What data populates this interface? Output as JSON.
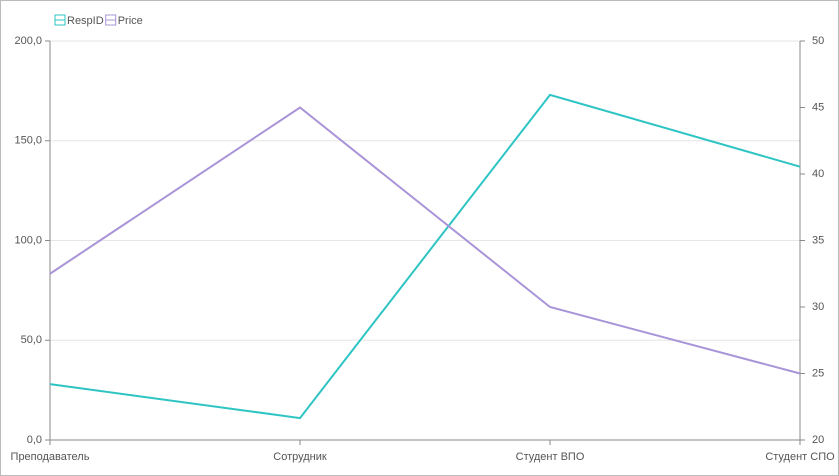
{
  "chart_data": {
    "type": "line",
    "categories": [
      "Преподаватель",
      "Сотрудник",
      "Студент ВПО",
      "Студент СПО"
    ],
    "series": [
      {
        "name": "RespID",
        "color": "#2ec4c4",
        "values": [
          28,
          11,
          173,
          137
        ]
      },
      {
        "name": "Price",
        "color": "#a994d8",
        "values": [
          32.5,
          45,
          30,
          25
        ],
        "axis": "y2"
      }
    ],
    "ylim": [
      0,
      200
    ],
    "yticks": [
      {
        "value": 0,
        "label": "0,0"
      },
      {
        "value": 50,
        "label": "50,0"
      },
      {
        "value": 100,
        "label": "100,0"
      },
      {
        "value": 150,
        "label": "150,0"
      },
      {
        "value": 200,
        "label": "200,0"
      }
    ],
    "y2lim": [
      20,
      50
    ],
    "y2ticks": [
      20,
      25,
      30,
      35,
      40,
      45,
      50
    ],
    "grid": true,
    "legend": "top-left"
  }
}
